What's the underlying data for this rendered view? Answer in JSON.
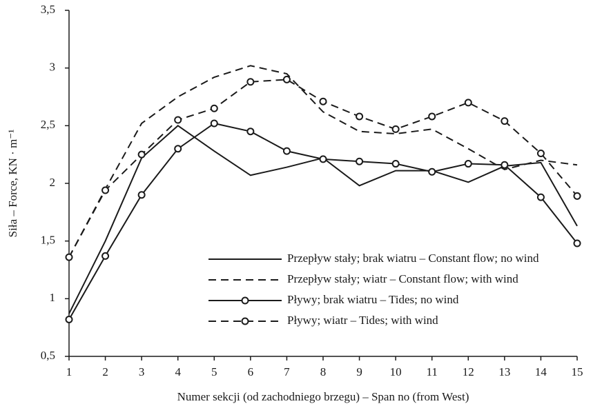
{
  "chart_data": {
    "type": "line",
    "x_label": "Numer sekcji (od zachodniego brzegu) – Span no (from West)",
    "y_label": "Siła – Force, KN · m⁻¹",
    "x": [
      1,
      2,
      3,
      4,
      5,
      6,
      7,
      8,
      9,
      10,
      11,
      12,
      13,
      14,
      15
    ],
    "xlim": [
      1,
      15
    ],
    "xticks": [
      1,
      2,
      3,
      4,
      5,
      6,
      7,
      8,
      9,
      10,
      11,
      12,
      13,
      14,
      15
    ],
    "ylim": [
      0.5,
      3.5
    ],
    "yticks": [
      {
        "value": 0.5,
        "label": "0,5"
      },
      1,
      {
        "value": 1.5,
        "label": "1,5"
      },
      2,
      {
        "value": 2.5,
        "label": "2,5"
      },
      3,
      {
        "value": 3.5,
        "label": "3,5"
      }
    ],
    "grid": false,
    "series": [
      {
        "name": "Przepływ stały; brak wiatru – Constant flow; no wind",
        "color": "#1a1a1a",
        "dashed": false,
        "marker": "none",
        "values": [
          0.87,
          1.5,
          2.22,
          2.5,
          2.28,
          2.07,
          2.14,
          2.22,
          1.98,
          2.11,
          2.11,
          2.01,
          2.15,
          2.18,
          1.63
        ]
      },
      {
        "name": "Przepływ stały; wiatr – Constant flow; with wind",
        "color": "#1a1a1a",
        "dashed": true,
        "marker": "none",
        "values": [
          1.36,
          1.95,
          2.52,
          2.75,
          2.92,
          3.02,
          2.95,
          2.62,
          2.45,
          2.43,
          2.47,
          2.3,
          2.12,
          2.2,
          2.16
        ]
      },
      {
        "name": "Pływy; brak wiatru – Tides; no wind",
        "color": "#1a1a1a",
        "dashed": false,
        "marker": "circle",
        "values": [
          0.82,
          1.37,
          1.9,
          2.3,
          2.52,
          2.45,
          2.28,
          2.21,
          2.19,
          2.17,
          2.1,
          2.17,
          2.16,
          1.88,
          1.48
        ]
      },
      {
        "name": "Pływy; wiatr – Tides; with wind",
        "color": "#1a1a1a",
        "dashed": true,
        "marker": "circle",
        "values": [
          1.36,
          1.94,
          2.25,
          2.55,
          2.65,
          2.88,
          2.9,
          2.71,
          2.58,
          2.47,
          2.58,
          2.7,
          2.54,
          2.26,
          1.89
        ]
      }
    ]
  }
}
